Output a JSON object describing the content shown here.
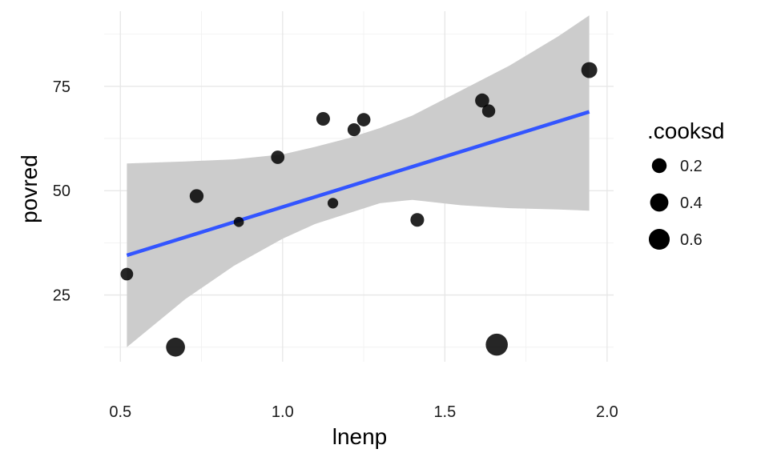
{
  "chart_data": {
    "type": "scatter",
    "xlabel": "lnenp",
    "ylabel": "povred",
    "xlim": [
      0.45,
      2.02
    ],
    "ylim": [
      9,
      93
    ],
    "x_ticks": [
      0.5,
      1.0,
      1.5,
      2.0
    ],
    "x_tick_labels": [
      "0.5",
      "1.0",
      "1.5",
      "2.0"
    ],
    "y_ticks": [
      25,
      50,
      75
    ],
    "y_tick_labels": [
      "25",
      "50",
      "75"
    ],
    "grid": true,
    "points": [
      {
        "x": 0.52,
        "y": 30.0,
        "cooksd": 0.11
      },
      {
        "x": 0.67,
        "y": 12.5,
        "cooksd": 0.45
      },
      {
        "x": 0.735,
        "y": 48.7,
        "cooksd": 0.16
      },
      {
        "x": 0.865,
        "y": 42.5,
        "cooksd": 0.04
      },
      {
        "x": 0.985,
        "y": 58.0,
        "cooksd": 0.14
      },
      {
        "x": 1.125,
        "y": 67.2,
        "cooksd": 0.15
      },
      {
        "x": 1.155,
        "y": 47.0,
        "cooksd": 0.05
      },
      {
        "x": 1.22,
        "y": 64.6,
        "cooksd": 0.12
      },
      {
        "x": 1.25,
        "y": 67.0,
        "cooksd": 0.14
      },
      {
        "x": 1.415,
        "y": 43.0,
        "cooksd": 0.15
      },
      {
        "x": 1.615,
        "y": 71.6,
        "cooksd": 0.17
      },
      {
        "x": 1.635,
        "y": 69.1,
        "cooksd": 0.13
      },
      {
        "x": 1.66,
        "y": 13.1,
        "cooksd": 0.7
      },
      {
        "x": 1.945,
        "y": 78.9,
        "cooksd": 0.26
      }
    ],
    "fit_line": {
      "x": [
        0.52,
        1.945
      ],
      "y": [
        34.5,
        68.9
      ],
      "color": "#3355ff"
    },
    "confidence_band": {
      "x": [
        0.52,
        0.7,
        0.85,
        1.0,
        1.1,
        1.2,
        1.3,
        1.4,
        1.55,
        1.7,
        1.85,
        1.945
      ],
      "lower": [
        12.5,
        24.0,
        32.0,
        38.5,
        42.0,
        44.5,
        47.0,
        47.8,
        46.5,
        45.8,
        45.5,
        45.2
      ],
      "upper": [
        56.5,
        57.0,
        57.5,
        58.7,
        60.5,
        62.5,
        65.0,
        68.0,
        74.0,
        80.0,
        87.0,
        92.0
      ],
      "color": "#cccccc"
    },
    "point_color": "#000000",
    "legend": {
      "title": ".cooksd",
      "placement": "right",
      "entries": [
        {
          "label": "0.2",
          "value": 0.2
        },
        {
          "label": "0.4",
          "value": 0.4
        },
        {
          "label": "0.6",
          "value": 0.6
        }
      ]
    }
  }
}
